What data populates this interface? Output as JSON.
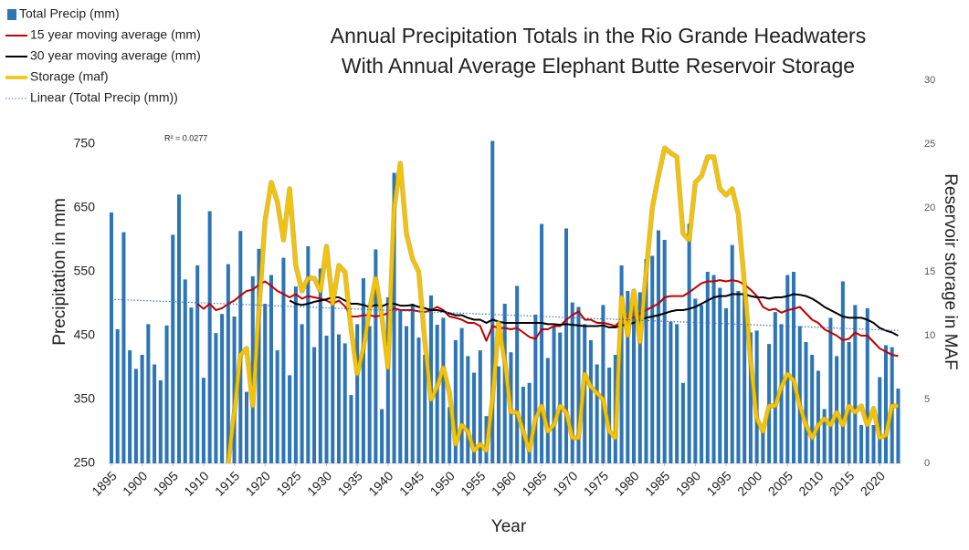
{
  "chart_data": {
    "type": "combo",
    "title": "Annual Precipitation Totals in the Rio Grande Headwaters",
    "subtitle": "With Annual Average Elephant Butte Reservoir Storage",
    "xlabel": "Year",
    "ylabel": "Precipitation in mm",
    "y2label": "Reservoir storage in MAF",
    "annotation": "R² = 0.0277",
    "xlim": [
      1894.5,
      2023.5
    ],
    "xticks": [
      1895,
      1900,
      1905,
      1910,
      1915,
      1920,
      1925,
      1930,
      1935,
      1940,
      1945,
      1950,
      1955,
      1960,
      1965,
      1970,
      1975,
      1980,
      1985,
      1990,
      1995,
      2000,
      2005,
      2010,
      2015,
      2020
    ],
    "ylim": [
      250,
      850
    ],
    "yticks": [
      250,
      350,
      450,
      550,
      650,
      750
    ],
    "y2lim": [
      0,
      30
    ],
    "y2ticks": [
      0,
      5,
      10,
      15,
      20,
      25,
      30
    ],
    "x": [
      1895,
      1896,
      1897,
      1898,
      1899,
      1900,
      1901,
      1902,
      1903,
      1904,
      1905,
      1906,
      1907,
      1908,
      1909,
      1910,
      1911,
      1912,
      1913,
      1914,
      1915,
      1916,
      1917,
      1918,
      1919,
      1920,
      1921,
      1922,
      1923,
      1924,
      1925,
      1926,
      1927,
      1928,
      1929,
      1930,
      1931,
      1932,
      1933,
      1934,
      1935,
      1936,
      1937,
      1938,
      1939,
      1940,
      1941,
      1942,
      1943,
      1944,
      1945,
      1946,
      1947,
      1948,
      1949,
      1950,
      1951,
      1952,
      1953,
      1954,
      1955,
      1956,
      1957,
      1958,
      1959,
      1960,
      1961,
      1962,
      1963,
      1964,
      1965,
      1966,
      1967,
      1968,
      1969,
      1970,
      1971,
      1972,
      1973,
      1974,
      1975,
      1976,
      1977,
      1978,
      1979,
      1980,
      1981,
      1982,
      1983,
      1984,
      1985,
      1986,
      1987,
      1988,
      1989,
      1990,
      1991,
      1992,
      1993,
      1994,
      1995,
      1996,
      1997,
      1998,
      1999,
      2000,
      2001,
      2002,
      2003,
      2004,
      2005,
      2006,
      2007,
      2008,
      2009,
      2010,
      2011,
      2012,
      2013,
      2014,
      2015,
      2016,
      2017,
      2018,
      2019,
      2020,
      2021,
      2022,
      2023
    ],
    "series": [
      {
        "name": "Total Precip (mm)",
        "type": "bar",
        "color": "#2e75b6",
        "values": [
          643,
          460,
          612,
          427,
          398,
          420,
          468,
          405,
          380,
          466,
          608,
          671,
          538,
          494,
          560,
          384,
          645,
          454,
          484,
          562,
          480,
          614,
          362,
          543,
          586,
          500,
          545,
          427,
          572,
          388,
          527,
          468,
          590,
          432,
          555,
          450,
          510,
          452,
          438,
          357,
          468,
          540,
          465,
          585,
          335,
          510,
          705,
          490,
          465,
          500,
          447,
          420,
          513,
          467,
          478,
          338,
          443,
          462,
          418,
          392,
          427,
          324,
          755,
          402,
          500,
          424,
          528,
          370,
          376,
          483,
          625,
          415,
          465,
          455,
          618,
          502,
          495,
          468,
          443,
          405,
          498,
          400,
          420,
          560,
          520,
          508,
          518,
          570,
          575,
          615,
          600,
          472,
          468,
          376,
          625,
          508,
          498,
          550,
          545,
          525,
          493,
          592,
          520,
          515,
          455,
          458,
          305,
          437,
          487,
          468,
          545,
          550,
          465,
          440,
          420,
          395,
          335,
          478,
          418,
          535,
          440,
          498,
          310,
          493,
          310,
          385,
          435,
          432,
          367
        ]
      },
      {
        "name": "15 year moving average (mm)",
        "type": "line",
        "color": "#c00000",
        "values": [
          null,
          null,
          null,
          null,
          null,
          null,
          null,
          null,
          null,
          null,
          null,
          null,
          null,
          null,
          500,
          492,
          500,
          490,
          493,
          500,
          505,
          513,
          520,
          522,
          530,
          535,
          528,
          520,
          515,
          510,
          515,
          508,
          512,
          510,
          508,
          505,
          500,
          505,
          496,
          480,
          480,
          482,
          482,
          480,
          482,
          485,
          493,
          490,
          490,
          490,
          488,
          487,
          490,
          495,
          490,
          480,
          478,
          475,
          470,
          470,
          465,
          442,
          465,
          462,
          462,
          460,
          462,
          455,
          448,
          445,
          460,
          460,
          465,
          465,
          475,
          482,
          488,
          475,
          475,
          470,
          470,
          468,
          465,
          475,
          480,
          478,
          485,
          490,
          495,
          500,
          510,
          512,
          512,
          512,
          518,
          525,
          532,
          535,
          535,
          537,
          535,
          537,
          535,
          530,
          522,
          512,
          495,
          490,
          492,
          486,
          490,
          492,
          495,
          485,
          475,
          470,
          460,
          455,
          450,
          443,
          445,
          455,
          450,
          450,
          440,
          430,
          425,
          420,
          418
        ]
      },
      {
        "name": "30 year moving average (mm)",
        "type": "line",
        "color": "#000000",
        "values": [
          null,
          null,
          null,
          null,
          null,
          null,
          null,
          null,
          null,
          null,
          null,
          null,
          null,
          null,
          null,
          null,
          null,
          null,
          null,
          null,
          null,
          null,
          null,
          null,
          null,
          null,
          null,
          null,
          null,
          505,
          500,
          498,
          500,
          503,
          505,
          507,
          510,
          510,
          505,
          500,
          500,
          498,
          495,
          498,
          496,
          500,
          500,
          497,
          497,
          498,
          495,
          493,
          490,
          490,
          488,
          485,
          482,
          482,
          478,
          475,
          475,
          470,
          475,
          472,
          470,
          470,
          470,
          470,
          470,
          470,
          470,
          468,
          468,
          467,
          468,
          467,
          466,
          465,
          465,
          465,
          466,
          463,
          463,
          466,
          468,
          470,
          475,
          478,
          480,
          482,
          485,
          488,
          490,
          490,
          492,
          495,
          500,
          505,
          510,
          512,
          512,
          515,
          515,
          515,
          512,
          510,
          510,
          508,
          510,
          510,
          512,
          515,
          514,
          512,
          508,
          502,
          495,
          490,
          485,
          480,
          478,
          478,
          478,
          475,
          470,
          462,
          458,
          455,
          450
        ]
      },
      {
        "name": "Storage (maf)",
        "type": "line",
        "axis": "y2",
        "color": "#f5c400",
        "values": [
          null,
          null,
          null,
          null,
          null,
          null,
          null,
          null,
          null,
          null,
          null,
          null,
          null,
          null,
          null,
          null,
          null,
          null,
          null,
          0,
          4,
          8.5,
          9,
          4.5,
          12,
          19,
          22,
          20.5,
          17.5,
          21.5,
          15.5,
          13.5,
          14.5,
          14.5,
          13.5,
          17,
          12.5,
          15.5,
          15,
          10.5,
          7,
          9,
          12,
          14.5,
          11.5,
          7.5,
          20,
          23.5,
          18,
          16,
          15,
          9.5,
          5,
          6,
          7.5,
          5.5,
          1.5,
          3,
          2.5,
          1,
          1.5,
          1,
          5,
          11,
          8,
          4,
          4,
          2.5,
          1,
          3.5,
          4.5,
          2.5,
          3,
          4.5,
          4,
          2,
          2,
          7,
          6,
          5.5,
          5,
          2.5,
          2,
          13,
          10,
          13.5,
          9.5,
          15,
          20,
          22.5,
          24.7,
          24.3,
          24,
          18,
          17.5,
          22,
          22.5,
          24,
          24,
          21.5,
          21,
          21.5,
          19.5,
          14,
          8,
          3.5,
          2.5,
          4.5,
          4.5,
          6,
          7,
          6.5,
          4.5,
          3,
          2,
          3,
          3.5,
          3,
          4,
          3,
          4.5,
          4,
          4.5,
          3,
          4.3,
          2,
          2.2,
          4.5,
          4.5
        ]
      }
    ],
    "trendline": {
      "name": "Linear (Total Precip (mm))",
      "color": "#4472c4",
      "x": [
        1895,
        2023
      ],
      "values": [
        507,
        458
      ]
    }
  }
}
